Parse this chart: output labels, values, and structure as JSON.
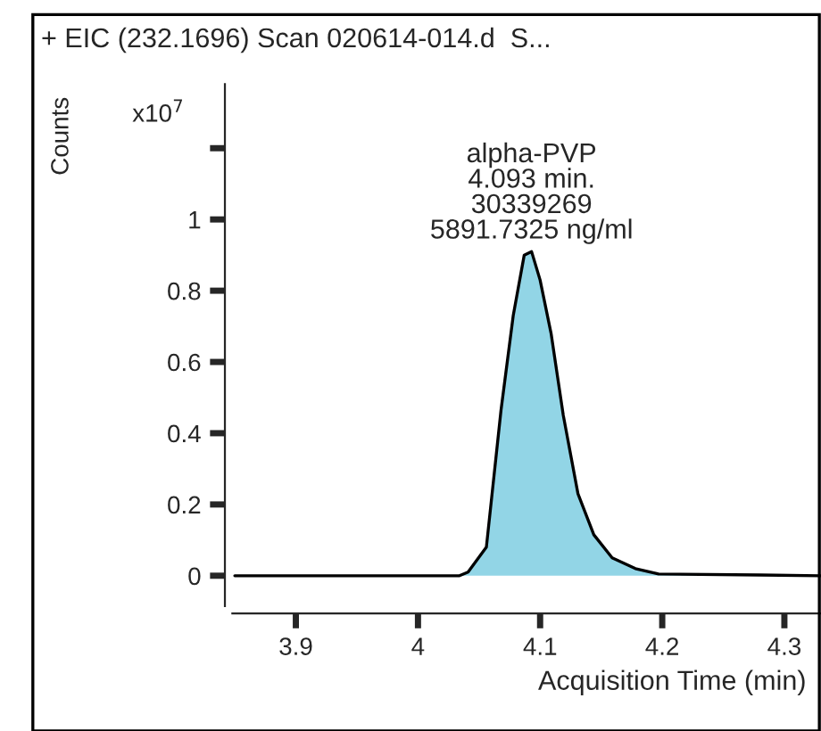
{
  "chart_data": {
    "type": "area",
    "title": "+ EIC (232.1696) Scan 020614-014.d  S...",
    "xlabel": "Acquisition Time (min)",
    "ylabel": "Counts",
    "x": [
      3.85,
      4.034,
      4.041,
      4.056,
      4.068,
      4.078,
      4.087,
      4.093,
      4.1,
      4.109,
      4.119,
      4.131,
      4.144,
      4.159,
      4.178,
      4.197,
      4.28,
      4.33
    ],
    "series": [
      {
        "color": "#92d5e6",
        "values": [
          0,
          0,
          0.01,
          0.08,
          0.465,
          0.73,
          0.9,
          0.91,
          0.83,
          0.68,
          0.45,
          0.23,
          0.115,
          0.05,
          0.02,
          0.005,
          0.002,
          0
        ]
      }
    ],
    "xlim": [
      3.848,
      4.33
    ],
    "xticks": [
      3.9,
      4,
      4.1,
      4.2,
      4.3
    ],
    "ylim": [
      -0.085,
      1.38
    ],
    "yticks": [
      0,
      0.2,
      0.4,
      0.6,
      0.8,
      1,
      {
        "value": 1.2,
        "label": null
      }
    ],
    "annotations": [
      "x10$^{7}$",
      {
        "text": "alpha-PVP\n4.093 min.\n30339269\n5891.7325 ng/ml",
        "x": 4.093,
        "y": 0.91
      }
    ],
    "grid": false,
    "legend": false
  }
}
